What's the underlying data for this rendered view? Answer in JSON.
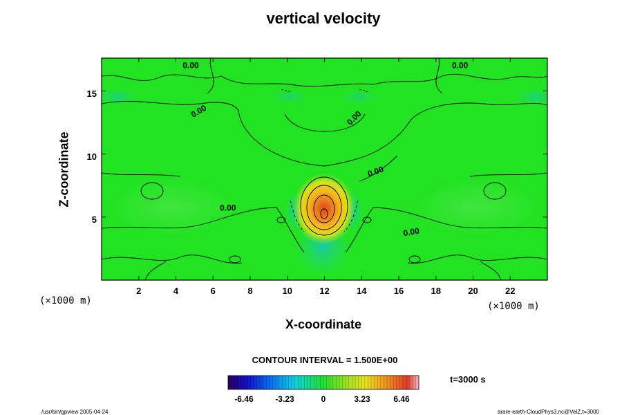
{
  "chart_data": {
    "type": "heatmap",
    "title": "vertical velocity",
    "xlabel": "X-coordinate",
    "ylabel": "Z-coordinate",
    "x_unit": "(×1000 m)",
    "y_unit": "(×1000 m)",
    "xlim": [
      0,
      24
    ],
    "ylim": [
      0,
      17.6
    ],
    "x_ticks": [
      2,
      4,
      6,
      8,
      10,
      12,
      14,
      16,
      18,
      20,
      22
    ],
    "y_ticks": [
      5,
      10,
      15
    ],
    "contour_labels": [
      {
        "text": "0.00",
        "x": 4.8,
        "z": 16.8
      },
      {
        "text": "0.00",
        "x": 19.3,
        "z": 16.8
      },
      {
        "text": "0.00",
        "x": 5.3,
        "z": 13.2
      },
      {
        "text": "0.00",
        "x": 13.7,
        "z": 12.7
      },
      {
        "text": "0.00",
        "x": 14.8,
        "z": 8.4
      },
      {
        "text": "0.00",
        "x": 6.8,
        "z": 5.5
      },
      {
        "text": "0.00",
        "x": 16.7,
        "z": 3.6
      }
    ],
    "features": [
      {
        "kind": "updraft_max",
        "x": 12.0,
        "z": 6.0,
        "value": 6.46
      },
      {
        "kind": "downdraft",
        "x": 10.7,
        "z": 5.0,
        "value": -1.5
      },
      {
        "kind": "downdraft",
        "x": 13.3,
        "z": 5.0,
        "value": -1.5
      }
    ],
    "contour_interval": "CONTOUR INTERVAL = 1.500E+00",
    "colorbar": {
      "ticks": [
        "-6.46",
        "-3.23",
        "0",
        "3.23",
        "6.46"
      ],
      "range": [
        -6.46,
        6.46
      ]
    },
    "time": "t=3000 s",
    "colors": {
      "background_field": "#1fe41f",
      "positive_max": "#e8541f",
      "negative": "#18c6c6"
    }
  },
  "footer": {
    "left": "/usr/bin/gpview 2005-04-24",
    "right": "arare-earth-CloudPhys3.nc@VelZ,t=3000"
  }
}
